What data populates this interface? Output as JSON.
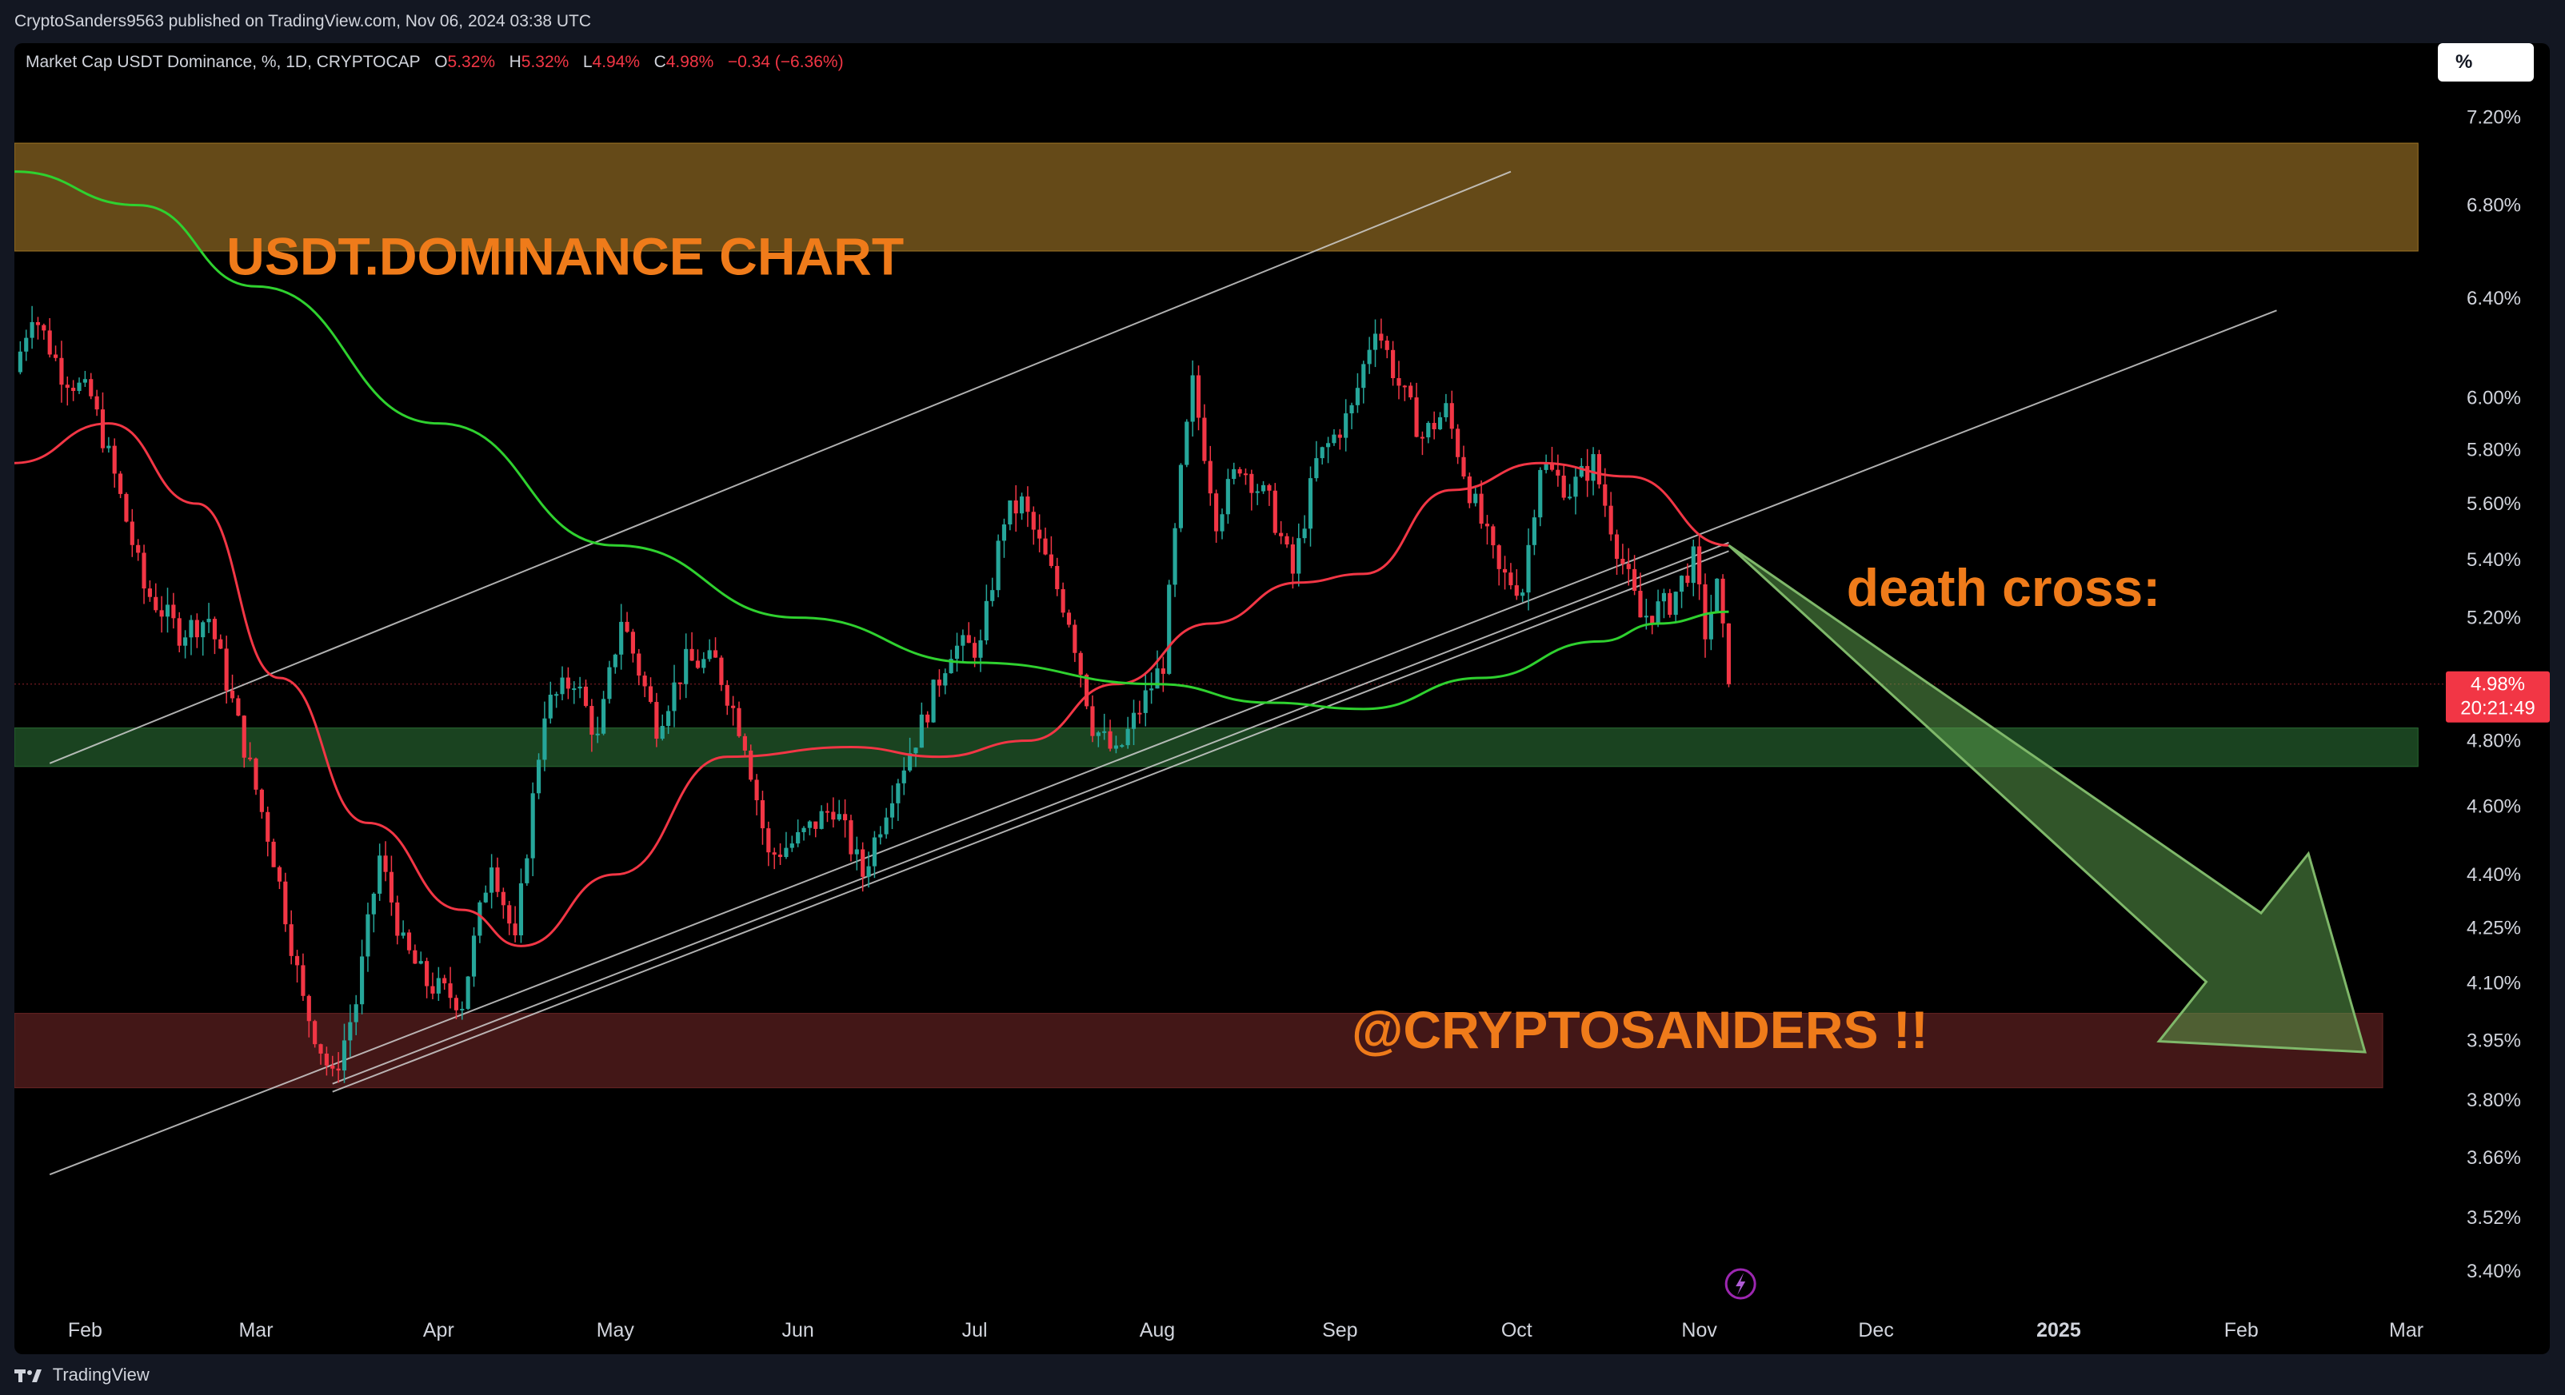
{
  "header": {
    "publish_line": "CryptoSanders9563 published on TradingView.com, Nov 06, 2024 03:38 UTC"
  },
  "legend": {
    "symbol": "Market Cap USDT Dominance, %, 1D, CRYPTOCAP",
    "o_label": "O",
    "o": "5.32%",
    "h_label": "H",
    "h": "5.32%",
    "l_label": "L",
    "l": "4.94%",
    "c_label": "C",
    "c": "4.98%",
    "change": "−0.34 (−6.36%)"
  },
  "unit_button": {
    "label": "%"
  },
  "price_tag": {
    "price": "4.98%",
    "countdown": "20:21:49"
  },
  "footer": {
    "brand": "TradingView"
  },
  "colors": {
    "up": "#26a69a",
    "down": "#f23645",
    "ma_fast": "#f23645",
    "ma_slow": "#2fd12f",
    "annotation": "#ef7b1a"
  },
  "chart_data": {
    "type": "candlestick",
    "title": "",
    "y_axis": {
      "scale": "log",
      "range": [
        3.34,
        7.4
      ],
      "tick_labels": [
        "7.20%",
        "6.80%",
        "6.40%",
        "6.00%",
        "5.80%",
        "5.60%",
        "5.40%",
        "5.20%",
        "4.80%",
        "4.60%",
        "4.40%",
        "4.25%",
        "4.10%",
        "3.95%",
        "3.80%",
        "3.66%",
        "3.52%",
        "3.40%"
      ],
      "tick_values": [
        7.2,
        6.8,
        6.4,
        6.0,
        5.8,
        5.6,
        5.4,
        5.2,
        4.8,
        4.6,
        4.4,
        4.25,
        4.1,
        3.95,
        3.8,
        3.66,
        3.52,
        3.4
      ]
    },
    "x_axis": {
      "range": [
        "2024-01-20",
        "2025-03-05"
      ],
      "tick_labels": [
        "Feb",
        "Mar",
        "Apr",
        "May",
        "Jun",
        "Jul",
        "Aug",
        "Sep",
        "Oct",
        "Nov",
        "Dec",
        "2025",
        "Feb",
        "Mar"
      ],
      "tick_dates": [
        "2024-02-01",
        "2024-03-01",
        "2024-04-01",
        "2024-05-01",
        "2024-06-01",
        "2024-07-01",
        "2024-08-01",
        "2024-09-01",
        "2024-10-01",
        "2024-11-01",
        "2024-12-01",
        "2025-01-01",
        "2025-02-01",
        "2025-03-01"
      ]
    },
    "price_path": [
      [
        "2024-01-20",
        6.1
      ],
      [
        "2024-01-23",
        6.35
      ],
      [
        "2024-01-28",
        6.1
      ],
      [
        "2024-02-02",
        6.0
      ],
      [
        "2024-02-06",
        5.7
      ],
      [
        "2024-02-11",
        5.3
      ],
      [
        "2024-02-17",
        5.15
      ],
      [
        "2024-02-22",
        5.2
      ],
      [
        "2024-02-27",
        4.85
      ],
      [
        "2024-03-04",
        4.45
      ],
      [
        "2024-03-09",
        4.05
      ],
      [
        "2024-03-14",
        3.85
      ],
      [
        "2024-03-18",
        4.05
      ],
      [
        "2024-03-22",
        4.45
      ],
      [
        "2024-03-26",
        4.2
      ],
      [
        "2024-03-30",
        4.1
      ],
      [
        "2024-04-05",
        4.05
      ],
      [
        "2024-04-10",
        4.45
      ],
      [
        "2024-04-14",
        4.2
      ],
      [
        "2024-04-19",
        4.9
      ],
      [
        "2024-04-24",
        5.0
      ],
      [
        "2024-04-28",
        4.8
      ],
      [
        "2024-05-02",
        5.2
      ],
      [
        "2024-05-08",
        4.85
      ],
      [
        "2024-05-13",
        5.05
      ],
      [
        "2024-05-18",
        5.05
      ],
      [
        "2024-05-23",
        4.8
      ],
      [
        "2024-05-27",
        4.45
      ],
      [
        "2024-06-01",
        4.5
      ],
      [
        "2024-06-07",
        4.6
      ],
      [
        "2024-06-12",
        4.4
      ],
      [
        "2024-06-17",
        4.65
      ],
      [
        "2024-06-22",
        4.85
      ],
      [
        "2024-06-27",
        5.1
      ],
      [
        "2024-07-02",
        5.1
      ],
      [
        "2024-07-06",
        5.55
      ],
      [
        "2024-07-09",
        5.6
      ],
      [
        "2024-07-13",
        5.4
      ],
      [
        "2024-07-17",
        5.2
      ],
      [
        "2024-07-21",
        4.85
      ],
      [
        "2024-07-25",
        4.75
      ],
      [
        "2024-07-29",
        4.9
      ],
      [
        "2024-08-02",
        5.05
      ],
      [
        "2024-08-05",
        5.7
      ],
      [
        "2024-08-07",
        6.05
      ],
      [
        "2024-08-11",
        5.55
      ],
      [
        "2024-08-15",
        5.75
      ],
      [
        "2024-08-20",
        5.6
      ],
      [
        "2024-08-24",
        5.35
      ],
      [
        "2024-08-28",
        5.75
      ],
      [
        "2024-09-03",
        5.95
      ],
      [
        "2024-09-07",
        6.3
      ],
      [
        "2024-09-11",
        6.05
      ],
      [
        "2024-09-15",
        5.85
      ],
      [
        "2024-09-19",
        5.95
      ],
      [
        "2024-09-23",
        5.65
      ],
      [
        "2024-09-28",
        5.35
      ],
      [
        "2024-10-02",
        5.3
      ],
      [
        "2024-10-05",
        5.75
      ],
      [
        "2024-10-10",
        5.65
      ],
      [
        "2024-10-14",
        5.75
      ],
      [
        "2024-10-18",
        5.45
      ],
      [
        "2024-10-22",
        5.2
      ],
      [
        "2024-10-27",
        5.25
      ],
      [
        "2024-10-31",
        5.4
      ],
      [
        "2024-11-02",
        5.15
      ],
      [
        "2024-11-04",
        5.3
      ],
      [
        "2024-11-06",
        4.98
      ]
    ],
    "moving_averages": [
      {
        "color": "#f23645",
        "points": [
          [
            "2024-01-20",
            5.75
          ],
          [
            "2024-02-05",
            5.9
          ],
          [
            "2024-02-20",
            5.6
          ],
          [
            "2024-03-05",
            5.0
          ],
          [
            "2024-03-20",
            4.55
          ],
          [
            "2024-04-05",
            4.3
          ],
          [
            "2024-04-15",
            4.2
          ],
          [
            "2024-05-01",
            4.4
          ],
          [
            "2024-05-20",
            4.75
          ],
          [
            "2024-06-10",
            4.78
          ],
          [
            "2024-06-25",
            4.75
          ],
          [
            "2024-07-10",
            4.8
          ],
          [
            "2024-07-25",
            4.98
          ],
          [
            "2024-08-10",
            5.18
          ],
          [
            "2024-08-25",
            5.32
          ],
          [
            "2024-09-05",
            5.35
          ],
          [
            "2024-09-20",
            5.65
          ],
          [
            "2024-10-05",
            5.75
          ],
          [
            "2024-10-20",
            5.7
          ],
          [
            "2024-11-06",
            5.45
          ]
        ]
      },
      {
        "color": "#2fd12f",
        "points": [
          [
            "2024-01-20",
            6.95
          ],
          [
            "2024-02-10",
            6.8
          ],
          [
            "2024-03-01",
            6.45
          ],
          [
            "2024-04-01",
            5.9
          ],
          [
            "2024-05-01",
            5.45
          ],
          [
            "2024-06-01",
            5.2
          ],
          [
            "2024-07-01",
            5.05
          ],
          [
            "2024-08-01",
            4.98
          ],
          [
            "2024-08-20",
            4.92
          ],
          [
            "2024-09-05",
            4.9
          ],
          [
            "2024-09-25",
            5.0
          ],
          [
            "2024-10-15",
            5.12
          ],
          [
            "2024-10-25",
            5.18
          ],
          [
            "2024-11-06",
            5.22
          ]
        ]
      }
    ],
    "zones": [
      {
        "color": "#b8862b",
        "y": [
          6.6,
          7.08
        ],
        "x": [
          "2024-01-20",
          "2025-03-03"
        ]
      },
      {
        "color": "#2f7a3a",
        "y": [
          4.72,
          4.84
        ],
        "x": [
          "2024-01-20",
          "2025-03-03"
        ]
      },
      {
        "color": "#7a2a2a",
        "y": [
          3.83,
          4.02
        ],
        "x": [
          "2024-01-20",
          "2025-02-25"
        ]
      }
    ],
    "trendlines": [
      {
        "from": [
          "2024-01-26",
          4.73
        ],
        "to": [
          "2024-09-30",
          6.95
        ]
      },
      {
        "from": [
          "2024-01-26",
          3.62
        ],
        "to": [
          "2025-02-07",
          6.35
        ]
      },
      {
        "from": [
          "2024-03-14",
          3.82
        ],
        "to": [
          "2024-11-06",
          5.43
        ]
      },
      {
        "from": [
          "2024-03-14",
          3.84
        ],
        "to": [
          "2024-11-06",
          5.46
        ]
      }
    ],
    "arrow": {
      "from": [
        "2024-11-06",
        5.45
      ],
      "to": [
        "2025-02-22",
        3.92
      ],
      "color": "#5a9a4a"
    },
    "annotations": [
      {
        "text": "USDT.DOMINANCE CHART",
        "at": [
          "2024-02-25",
          6.5
        ]
      },
      {
        "text": "death cross:",
        "at": [
          "2024-11-26",
          5.24
        ]
      },
      {
        "text": "@CRYPTOSANDERS !!",
        "at": [
          "2024-09-03",
          3.93
        ]
      }
    ],
    "last_price": 4.98,
    "grid": false,
    "legend_position": "top-left"
  }
}
